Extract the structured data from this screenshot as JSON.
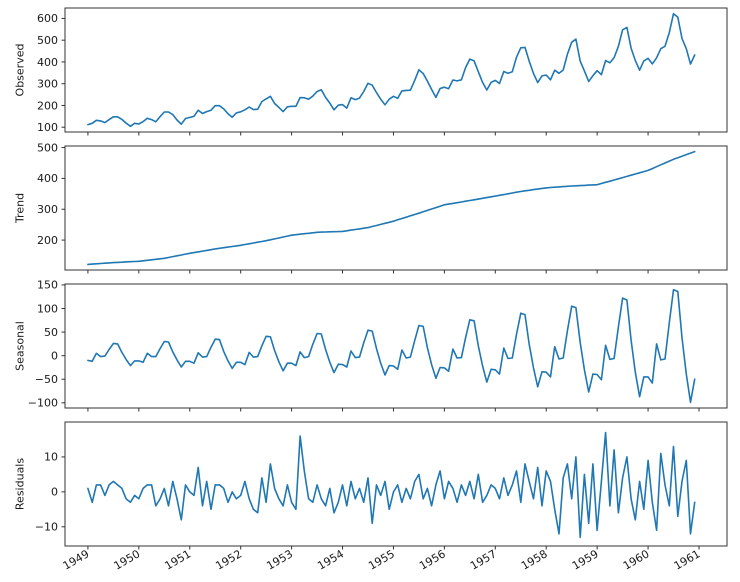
{
  "figure": {
    "kind": "time-series seasonal decomposition, 4 stacked subplots sharing x-axis",
    "background_color": "#ffffff"
  },
  "chart_data": {
    "type": "line",
    "title": "",
    "xlabel": "",
    "legend": "none",
    "grid": false,
    "line_color": "#1f77b4",
    "frame_color": "#333333",
    "text_color": "#1a1a1a",
    "x": {
      "unit": "months",
      "start": 1949.0,
      "step": 0.0833333,
      "points": 144,
      "xlim": [
        1948.55,
        1961.55
      ],
      "tick_values": [
        1949,
        1950,
        1951,
        1952,
        1953,
        1954,
        1955,
        1956,
        1957,
        1958,
        1959,
        1960,
        1961
      ],
      "tick_labels": [
        "1949",
        "1950",
        "1951",
        "1952",
        "1953",
        "1954",
        "1955",
        "1956",
        "1957",
        "1958",
        "1959",
        "1960",
        "1961"
      ],
      "tick_rotation_deg": 30
    },
    "panels": [
      {
        "ylabel": "Observed",
        "ylim": [
          78,
          648
        ],
        "yticks": [
          100,
          200,
          300,
          400,
          500,
          600
        ],
        "values": [
          112,
          118,
          132,
          129,
          121,
          135,
          148,
          148,
          136,
          119,
          104,
          118,
          115,
          126,
          141,
          135,
          125,
          149,
          170,
          170,
          158,
          133,
          114,
          140,
          145,
          150,
          178,
          163,
          172,
          178,
          199,
          199,
          184,
          162,
          146,
          166,
          171,
          180,
          193,
          181,
          183,
          218,
          230,
          242,
          209,
          191,
          172,
          194,
          196,
          196,
          236,
          235,
          229,
          243,
          264,
          272,
          237,
          211,
          180,
          201,
          204,
          188,
          235,
          227,
          234,
          264,
          302,
          293,
          259,
          229,
          203,
          229,
          242,
          233,
          267,
          269,
          270,
          315,
          364,
          347,
          312,
          274,
          237,
          278,
          284,
          277,
          317,
          313,
          318,
          374,
          413,
          405,
          355,
          306,
          271,
          306,
          315,
          301,
          356,
          348,
          355,
          422,
          465,
          467,
          404,
          347,
          305,
          336,
          340,
          318,
          362,
          348,
          363,
          435,
          491,
          505,
          404,
          359,
          310,
          337,
          360,
          342,
          406,
          396,
          420,
          472,
          548,
          559,
          463,
          407,
          362,
          405,
          417,
          391,
          419,
          461,
          472,
          535,
          622,
          606,
          508,
          461,
          390,
          432
        ]
      },
      {
        "ylabel": "Trend",
        "ylim": [
          103,
          505
        ],
        "yticks": [
          200,
          300,
          400,
          500
        ],
        "values": [
          121,
          122,
          123,
          124,
          125,
          126,
          127,
          127.7,
          128.4,
          129.2,
          129.9,
          130.6,
          131.3,
          132.9,
          134.5,
          136.1,
          137.7,
          139.3,
          140.9,
          143.6,
          146.3,
          149.0,
          151.7,
          154.4,
          157.1,
          159.5,
          161.8,
          164.2,
          166.6,
          168.9,
          171.3,
          173.3,
          175.2,
          177.2,
          179.2,
          181.1,
          183.1,
          185.6,
          188.1,
          190.6,
          193.0,
          195.5,
          198.0,
          201.0,
          203.9,
          206.9,
          209.9,
          212.8,
          215.8,
          217.4,
          219.0,
          220.6,
          222.1,
          223.7,
          225.3,
          225.8,
          226.2,
          226.7,
          227.1,
          227.6,
          228.0,
          230.1,
          232.2,
          234.3,
          236.3,
          238.4,
          240.5,
          244.0,
          247.4,
          250.9,
          254.4,
          257.8,
          261.3,
          265.6,
          269.9,
          274.3,
          278.6,
          282.9,
          287.2,
          291.7,
          296.3,
          300.8,
          305.3,
          309.9,
          314.4,
          316.7,
          319.0,
          321.3,
          323.6,
          325.9,
          328.2,
          330.6,
          333.0,
          335.4,
          337.8,
          340.2,
          342.6,
          345.1,
          347.6,
          350.1,
          352.6,
          355.1,
          357.6,
          359.6,
          361.5,
          363.5,
          365.4,
          367.4,
          369.3,
          370.3,
          371.3,
          372.3,
          373.3,
          374.3,
          375.3,
          376.0,
          376.7,
          377.4,
          378.1,
          378.8,
          379.5,
          383.3,
          387.2,
          391.0,
          394.8,
          398.7,
          402.5,
          406.4,
          410.3,
          414.2,
          418.1,
          422.0,
          425.8,
          431.8,
          437.8,
          443.9,
          449.9,
          456.0,
          462.0,
          467.0,
          472.0,
          477.0,
          482.0,
          487.0
        ]
      },
      {
        "ylabel": "Seasonal",
        "ylim": [
          -111,
          152
        ],
        "yticks": [
          -100,
          -50,
          0,
          50,
          100,
          150
        ],
        "values": [
          -10,
          -12,
          5,
          -2,
          -1,
          13,
          26,
          25,
          7,
          -8,
          -21,
          -11,
          -11,
          -14,
          5,
          -2,
          -2,
          15,
          30,
          29,
          8,
          -9,
          -24,
          -12,
          -12,
          -16,
          6,
          -3,
          -2,
          18,
          35,
          34,
          9,
          -11,
          -27,
          -14,
          -14,
          -19,
          7,
          -3,
          -2,
          21,
          41,
          40,
          11,
          -13,
          -32,
          -16,
          -16,
          -21,
          8,
          -4,
          -2,
          24,
          47,
          46,
          13,
          -14,
          -36,
          -18,
          -19,
          -24,
          10,
          -4,
          -3,
          27,
          54,
          52,
          15,
          -16,
          -41,
          -21,
          -22,
          -29,
          12,
          -5,
          -3,
          32,
          64,
          62,
          17,
          -19,
          -48,
          -25,
          -26,
          -33,
          14,
          -5,
          -4,
          38,
          76,
          74,
          21,
          -22,
          -56,
          -29,
          -30,
          -39,
          16,
          -6,
          -5,
          45,
          90,
          87,
          24,
          -26,
          -66,
          -34,
          -35,
          -45,
          19,
          -7,
          -5,
          53,
          105,
          102,
          28,
          -30,
          -77,
          -39,
          -40,
          -51,
          22,
          -8,
          -6,
          61,
          122,
          118,
          33,
          -35,
          -87,
          -45,
          -45,
          -58,
          25,
          -9,
          -7,
          70,
          140,
          136,
          38,
          -39,
          -99,
          -50
        ]
      },
      {
        "ylabel": "Residuals",
        "ylim": [
          -15.5,
          20
        ],
        "yticks": [
          -10,
          0,
          10
        ],
        "values": [
          1,
          -3,
          2,
          2,
          -1,
          2,
          3,
          2,
          1,
          -2,
          -3,
          -1,
          -2,
          1,
          2,
          2,
          -4,
          -2,
          1,
          -4,
          3,
          -2,
          -8,
          2,
          0,
          -1,
          7,
          -4,
          3,
          -5,
          2,
          2,
          1,
          -3,
          0,
          -2,
          -1,
          3,
          -2,
          -5,
          -6,
          4,
          -3,
          8,
          1,
          -2,
          -4,
          2,
          -3,
          -5,
          16,
          6,
          -2,
          -3,
          2,
          -2,
          -4,
          1,
          -6,
          -3,
          2,
          -4,
          3,
          -2,
          1,
          -3,
          4,
          -9,
          2,
          -1,
          3,
          -5,
          0,
          2,
          -3,
          1,
          -2,
          3,
          5,
          -2,
          1,
          -4,
          2,
          6,
          -2,
          3,
          1,
          -3,
          2,
          -1,
          3,
          -2,
          5,
          -3,
          -1,
          2,
          1,
          -2,
          4,
          -1,
          2,
          6,
          -3,
          8,
          3,
          -2,
          7,
          -4,
          6,
          3,
          -5,
          -12,
          4,
          8,
          -2,
          10,
          -13,
          5,
          -9,
          8,
          -11,
          3,
          17,
          -4,
          12,
          -6,
          4,
          10,
          -2,
          -8,
          3,
          -5,
          9,
          -3,
          -11,
          11,
          2,
          -4,
          13,
          -7,
          3,
          9,
          -12,
          -3
        ]
      }
    ]
  }
}
